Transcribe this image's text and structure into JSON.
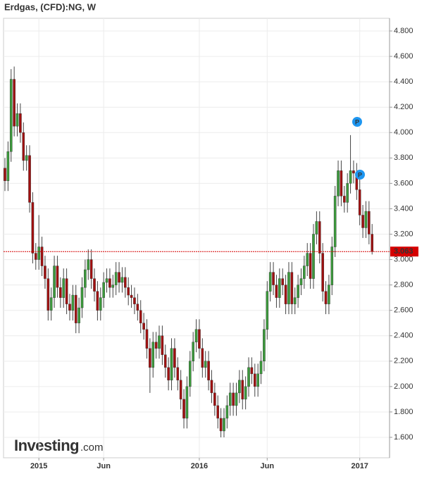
{
  "chart_data": {
    "type": "candlestick",
    "title": "Erdgas, (CFD):NG, W",
    "categories": [
      null,
      null,
      null,
      null,
      null,
      null,
      null,
      null,
      null,
      null,
      null,
      "2015",
      null,
      null,
      null,
      null,
      null,
      null,
      null,
      null,
      null,
      null,
      null,
      null,
      null,
      null,
      null,
      null,
      null,
      null,
      null,
      null,
      "Jun",
      null,
      null,
      null,
      null,
      null,
      null,
      null,
      null,
      null,
      null,
      null,
      null,
      null,
      null,
      null,
      null,
      null,
      null,
      null,
      null,
      null,
      null,
      null,
      null,
      null,
      null,
      null,
      null,
      null,
      null,
      "2016",
      null,
      null,
      null,
      null,
      null,
      null,
      null,
      null,
      null,
      null,
      null,
      null,
      null,
      null,
      null,
      null,
      null,
      null,
      null,
      null,
      null,
      "Jun",
      null,
      null,
      null,
      null,
      null,
      null,
      null,
      null,
      null,
      null,
      null,
      null,
      null,
      null,
      null,
      null,
      null,
      null,
      null,
      null,
      null,
      null,
      null,
      null,
      null,
      null,
      null,
      null,
      null,
      "2017",
      null,
      null,
      null,
      null
    ],
    "open": [
      3.72,
      3.62,
      3.85,
      4.42,
      4.05,
      4.15,
      4.0,
      3.78,
      3.82,
      3.45,
      3.05,
      3.0,
      3.1,
      2.95,
      2.85,
      2.6,
      2.7,
      2.95,
      2.78,
      2.7,
      2.85,
      2.65,
      2.6,
      2.72,
      2.5,
      2.62,
      2.78,
      2.92,
      3.0,
      2.85,
      2.75,
      2.6,
      2.7,
      2.82,
      2.85,
      2.78,
      2.8,
      2.9,
      2.82,
      2.86,
      2.78,
      2.72,
      2.7,
      2.65,
      2.6,
      2.5,
      2.45,
      2.3,
      2.15,
      2.35,
      2.3,
      2.4,
      2.25,
      2.15,
      2.05,
      2.3,
      2.15,
      2.05,
      1.9,
      1.75,
      2.0,
      2.2,
      2.35,
      2.45,
      2.3,
      2.15,
      2.2,
      2.05,
      1.95,
      1.85,
      1.75,
      1.65,
      1.75,
      1.85,
      1.95,
      1.85,
      1.95,
      2.05,
      1.9,
      2.0,
      2.15,
      2.1,
      2.0,
      2.1,
      2.2,
      2.45,
      2.75,
      2.9,
      2.8,
      2.7,
      2.85,
      2.8,
      2.65,
      2.9,
      2.65,
      2.7,
      2.8,
      2.85,
      2.95,
      3.05,
      2.85,
      3.2,
      3.3,
      3.05,
      2.75,
      2.65,
      2.8,
      3.1,
      3.5,
      3.7,
      3.5,
      3.45,
      3.6,
      3.7,
      3.68,
      3.55,
      3.35,
      3.25,
      3.38,
      3.2
    ],
    "high": [
      3.8,
      3.93,
      4.5,
      4.52,
      4.23,
      4.23,
      4.08,
      3.9,
      3.9,
      3.53,
      3.13,
      3.35,
      3.18,
      3.03,
      2.93,
      2.78,
      3.03,
      3.03,
      2.86,
      2.93,
      2.93,
      2.73,
      2.8,
      2.8,
      2.7,
      2.86,
      3.0,
      3.08,
      3.08,
      2.93,
      2.83,
      2.78,
      2.9,
      2.93,
      2.93,
      2.88,
      2.98,
      2.98,
      2.94,
      2.94,
      2.86,
      2.8,
      2.78,
      2.73,
      2.68,
      2.58,
      2.53,
      2.38,
      2.43,
      2.43,
      2.48,
      2.48,
      2.33,
      2.23,
      2.38,
      2.38,
      2.23,
      2.13,
      1.98,
      2.08,
      2.28,
      2.43,
      2.53,
      2.53,
      2.38,
      2.28,
      2.28,
      2.13,
      2.03,
      1.93,
      1.83,
      1.83,
      1.93,
      2.03,
      2.03,
      2.03,
      2.13,
      2.13,
      2.08,
      2.23,
      2.23,
      2.18,
      2.18,
      2.28,
      2.53,
      2.83,
      2.98,
      2.98,
      2.88,
      2.93,
      2.93,
      2.88,
      2.98,
      2.98,
      2.78,
      2.88,
      2.93,
      3.03,
      3.13,
      3.13,
      3.28,
      3.38,
      3.38,
      3.13,
      2.83,
      2.88,
      3.18,
      3.58,
      3.78,
      3.78,
      3.58,
      3.68,
      3.98,
      3.78,
      3.76,
      3.63,
      3.43,
      3.46,
      3.46,
      3.28
    ],
    "low": [
      3.54,
      3.54,
      3.77,
      3.97,
      3.97,
      3.92,
      3.7,
      3.7,
      3.37,
      2.97,
      2.92,
      2.92,
      2.87,
      2.77,
      2.52,
      2.52,
      2.62,
      2.7,
      2.62,
      2.62,
      2.57,
      2.52,
      2.52,
      2.42,
      2.42,
      2.54,
      2.7,
      2.84,
      2.77,
      2.67,
      2.52,
      2.52,
      2.62,
      2.74,
      2.7,
      2.7,
      2.72,
      2.74,
      2.74,
      2.7,
      2.64,
      2.62,
      2.57,
      2.52,
      2.42,
      2.37,
      2.22,
      1.95,
      2.07,
      2.22,
      2.22,
      2.17,
      2.07,
      1.97,
      1.97,
      2.07,
      1.97,
      1.82,
      1.67,
      1.67,
      1.92,
      2.12,
      2.27,
      2.22,
      2.07,
      2.07,
      1.97,
      1.87,
      1.77,
      1.67,
      1.6,
      1.6,
      1.67,
      1.77,
      1.77,
      1.77,
      1.87,
      1.82,
      1.82,
      1.92,
      2.02,
      1.92,
      1.92,
      2.02,
      2.12,
      2.37,
      2.67,
      2.72,
      2.62,
      2.62,
      2.72,
      2.57,
      2.57,
      2.57,
      2.57,
      2.62,
      2.72,
      2.77,
      2.87,
      2.77,
      2.77,
      3.12,
      2.97,
      2.67,
      2.57,
      2.57,
      2.72,
      3.02,
      3.42,
      3.42,
      3.37,
      3.37,
      3.52,
      3.6,
      3.47,
      3.27,
      3.17,
      3.17,
      3.12,
      3.04
    ],
    "close": [
      3.62,
      3.85,
      4.42,
      4.05,
      4.15,
      4.0,
      3.78,
      3.82,
      3.45,
      3.05,
      3.0,
      3.1,
      2.95,
      2.85,
      2.6,
      2.7,
      2.95,
      2.78,
      2.7,
      2.85,
      2.65,
      2.6,
      2.72,
      2.5,
      2.62,
      2.78,
      2.92,
      3.0,
      2.85,
      2.75,
      2.6,
      2.7,
      2.82,
      2.85,
      2.78,
      2.8,
      2.9,
      2.82,
      2.86,
      2.78,
      2.72,
      2.7,
      2.65,
      2.6,
      2.5,
      2.45,
      2.3,
      2.15,
      2.35,
      2.3,
      2.4,
      2.25,
      2.15,
      2.05,
      2.3,
      2.15,
      2.05,
      1.9,
      1.75,
      2.0,
      2.2,
      2.35,
      2.45,
      2.3,
      2.15,
      2.2,
      2.05,
      1.95,
      1.85,
      1.75,
      1.65,
      1.75,
      1.85,
      1.95,
      1.85,
      1.95,
      2.05,
      1.9,
      2.0,
      2.15,
      2.1,
      2.0,
      2.1,
      2.2,
      2.45,
      2.75,
      2.9,
      2.8,
      2.7,
      2.85,
      2.8,
      2.65,
      2.9,
      2.65,
      2.7,
      2.8,
      2.85,
      2.95,
      3.05,
      2.85,
      3.2,
      3.3,
      3.05,
      2.75,
      2.65,
      2.8,
      3.1,
      3.5,
      3.7,
      3.5,
      3.45,
      3.6,
      3.7,
      3.68,
      3.55,
      3.35,
      3.25,
      3.38,
      3.2,
      3.063
    ],
    "up_color": "#3c9a3c",
    "down_color": "#a01010",
    "last_line_color": "#d60000",
    "annotations": [
      "P",
      "P"
    ],
    "annotation_color": "#1e96f0",
    "ylim": [
      1.6,
      4.8
    ],
    "yticks": [
      {
        "value": 1.6,
        "label": "1.600"
      },
      {
        "value": 1.8,
        "label": "1.800"
      },
      {
        "value": 2.0,
        "label": "2.000"
      },
      {
        "value": 2.2,
        "label": "2.200"
      },
      {
        "value": 2.4,
        "label": "2.400"
      },
      {
        "value": 2.6,
        "label": "2.600"
      },
      {
        "value": 2.8,
        "label": "2.800"
      },
      {
        "value": 3.0,
        "label": "3.000"
      },
      {
        "value": 3.2,
        "label": "3.200"
      },
      {
        "value": 3.4,
        "label": "3.400"
      },
      {
        "value": 3.6,
        "label": "3.600"
      },
      {
        "value": 3.8,
        "label": "3.800"
      },
      {
        "value": 4.0,
        "label": "4.000"
      },
      {
        "value": 4.2,
        "label": "4.200"
      },
      {
        "value": 4.4,
        "label": "4.400"
      },
      {
        "value": 4.6,
        "label": "4.600"
      },
      {
        "value": 4.8,
        "label": "4.800"
      }
    ],
    "grid": true,
    "logo": "Investing",
    "logo_suffix": ".com"
  }
}
